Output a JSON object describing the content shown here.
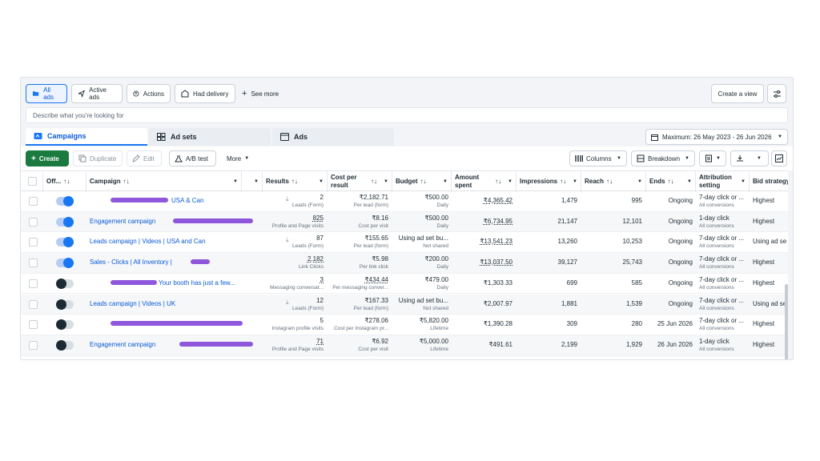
{
  "filters": {
    "chips": [
      {
        "label": "All ads",
        "icon": "folder-icon",
        "active": true
      },
      {
        "label": "Active ads",
        "icon": "send-icon",
        "active": false
      },
      {
        "label": "Actions",
        "icon": "action-icon",
        "active": false
      },
      {
        "label": "Had delivery",
        "icon": "inbox-icon",
        "active": false
      }
    ],
    "see_more": "See more",
    "create_view": "Create a view"
  },
  "search": {
    "placeholder": "Describe what you're looking for"
  },
  "tabs": [
    {
      "label": "Campaigns",
      "icon": "folder-icon",
      "active": true
    },
    {
      "label": "Ad sets",
      "icon": "grid-icon",
      "active": false
    },
    {
      "label": "Ads",
      "icon": "ad-icon",
      "active": false
    }
  ],
  "date_range": "Maximum: 26 May 2023 - 26 Jun 2026",
  "toolbar": {
    "create": "Create",
    "duplicate": "Duplicate",
    "edit": "Edit",
    "ab_test": "A/B test",
    "more": "More",
    "columns": "Columns",
    "breakdown": "Breakdown"
  },
  "columns": {
    "off_on": "Off...",
    "campaign": "Campaign",
    "results": "Results",
    "cost_per_result": "Cost per result",
    "budget": "Budget",
    "amount_spent": "Amount spent",
    "impressions": "Impressions",
    "reach": "Reach",
    "ends": "Ends",
    "attribution": "Attribution setting",
    "bid_strategy": "Bid strategy"
  },
  "rows": [
    {
      "campaign": "USA & Can",
      "on": true,
      "results": "2",
      "results_sub": "Leads (Form)",
      "cpr": "₹2,182.71",
      "cpr_sub": "Per lead (form)",
      "budget": "₹500.00",
      "budget_sub": "Daily",
      "spent": "₹4,365.42",
      "impressions": "1,479",
      "reach": "995",
      "ends": "Ongoing",
      "attribution": "7-day click or ...",
      "attribution_sub": "All conversions",
      "bid": "Highest"
    },
    {
      "campaign": "Engagement campaign",
      "on": true,
      "results": "825",
      "results_sub": "Profile and Page visits",
      "cpr": "₹8.16",
      "cpr_sub": "Cost per visit",
      "budget": "₹500.00",
      "budget_sub": "Daily",
      "spent": "₹6,734.95",
      "impressions": "21,147",
      "reach": "12,101",
      "ends": "Ongoing",
      "attribution": "1-day click",
      "attribution_sub": "All conversions",
      "bid": "Highest"
    },
    {
      "campaign": "Leads campaign | Videos | USA and Can",
      "on": true,
      "results": "87",
      "results_sub": "Leads (Form)",
      "cpr": "₹155.65",
      "cpr_sub": "Per lead (form)",
      "budget": "Using ad set bu...",
      "budget_sub": "Not shared",
      "spent": "₹13,541.23",
      "impressions": "13,260",
      "reach": "10,253",
      "ends": "Ongoing",
      "attribution": "7-day click or ...",
      "attribution_sub": "All conversions",
      "bid": "Using ad se"
    },
    {
      "campaign": "Sales - Clicks | All Inventory |",
      "on": true,
      "results": "2,182",
      "results_sub": "Link Clicks",
      "cpr": "₹5.98",
      "cpr_sub": "Per link click",
      "budget": "₹200.00",
      "budget_sub": "Daily",
      "spent": "₹13,037.50",
      "impressions": "39,127",
      "reach": "25,743",
      "ends": "Ongoing",
      "attribution": "7-day click or ...",
      "attribution_sub": "All conversions",
      "bid": "Highest"
    },
    {
      "campaign": "Your booth has just a few...",
      "on": false,
      "results": "3",
      "results_sub": "Messaging conversat...",
      "cpr": "₹434.44",
      "cpr_sub": "Per messaging conver...",
      "budget": "₹479.00",
      "budget_sub": "Daily",
      "spent": "₹1,303.33",
      "impressions": "699",
      "reach": "585",
      "ends": "Ongoing",
      "attribution": "7-day click or ...",
      "attribution_sub": "All conversions",
      "bid": "Highest"
    },
    {
      "campaign": "Leads campaign | Videos | UK",
      "on": false,
      "results": "12",
      "results_sub": "Leads (Form)",
      "cpr": "₹167.33",
      "cpr_sub": "Per lead (form)",
      "budget": "Using ad set bu...",
      "budget_sub": "Not shared",
      "spent": "₹2,007.97",
      "impressions": "1,881",
      "reach": "1,539",
      "ends": "Ongoing",
      "attribution": "7-day click or ...",
      "attribution_sub": "All conversions",
      "bid": "Using ad se"
    },
    {
      "campaign": "",
      "on": false,
      "results": "5",
      "results_sub": "Instagram profile visits",
      "cpr": "₹278.06",
      "cpr_sub": "Cost per Instagram pr...",
      "budget": "₹5,820.00",
      "budget_sub": "Lifetime",
      "spent": "₹1,390.28",
      "impressions": "309",
      "reach": "280",
      "ends": "25 Jun 2026",
      "attribution": "7-day click or ...",
      "attribution_sub": "All conversions",
      "bid": "Highest"
    },
    {
      "campaign": "Engagement campaign",
      "on": false,
      "results": "71",
      "results_sub": "Profile and Page visits",
      "cpr": "₹6.92",
      "cpr_sub": "Cost per visit",
      "budget": "₹5,000.00",
      "budget_sub": "Lifetime",
      "spent": "₹491.61",
      "impressions": "2,199",
      "reach": "1,929",
      "ends": "26 Jun 2026",
      "attribution": "1-day click",
      "attribution_sub": "All conversions",
      "bid": "Highest"
    }
  ],
  "colors": {
    "accent": "#1877f2",
    "create": "#1b7a40",
    "redaction": "#7a3ad6"
  }
}
